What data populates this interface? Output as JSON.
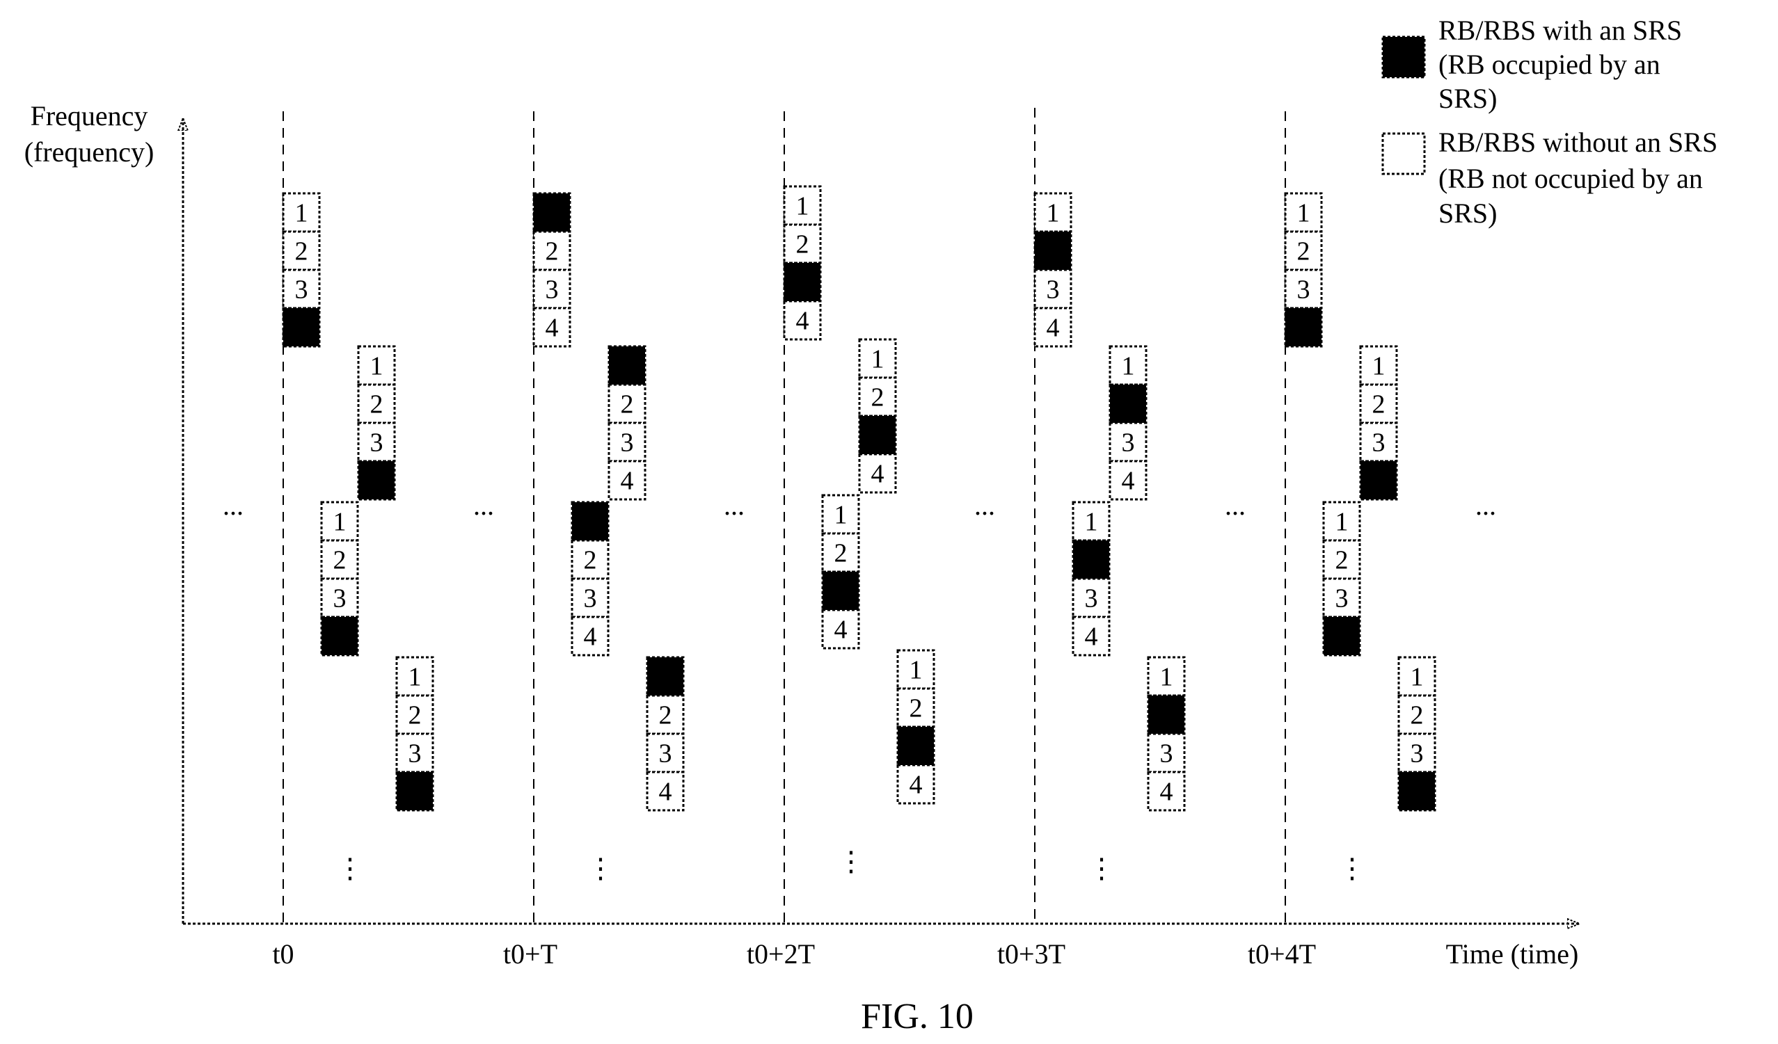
{
  "y_axis_label": [
    "Frequency",
    "(frequency)"
  ],
  "x_axis_label": "Time (time)",
  "time_labels": [
    "t0",
    "t0+T",
    "t0+2T",
    "t0+3T",
    "t0+4T"
  ],
  "figure_label": "FIG. 10",
  "ellipsis_h": "...",
  "ellipsis_v": "⋮",
  "legend": {
    "with_srs": [
      "RB/RBS with an SRS",
      "(RB occupied by an",
      "SRS)"
    ],
    "without_srs": [
      "RB/RBS without an SRS",
      "(RB not occupied by an",
      "SRS)"
    ]
  },
  "rb_numbers": [
    "1",
    "2",
    "3",
    "4"
  ],
  "periods": [
    {
      "time": "t0",
      "occupied": [
        4,
        4,
        4,
        4
      ]
    },
    {
      "time": "t0+T",
      "occupied": [
        1,
        1,
        1,
        1
      ]
    },
    {
      "time": "t0+2T",
      "occupied": [
        3,
        3,
        3,
        3
      ]
    },
    {
      "time": "t0+3T",
      "occupied": [
        2,
        2,
        2,
        2
      ]
    },
    {
      "time": "t0+4T",
      "occupied": [
        4,
        4,
        4,
        4
      ]
    }
  ],
  "colors": {
    "srs_fill": "#000000",
    "no_srs_fill": "#ffffff",
    "ink": "#000000"
  }
}
